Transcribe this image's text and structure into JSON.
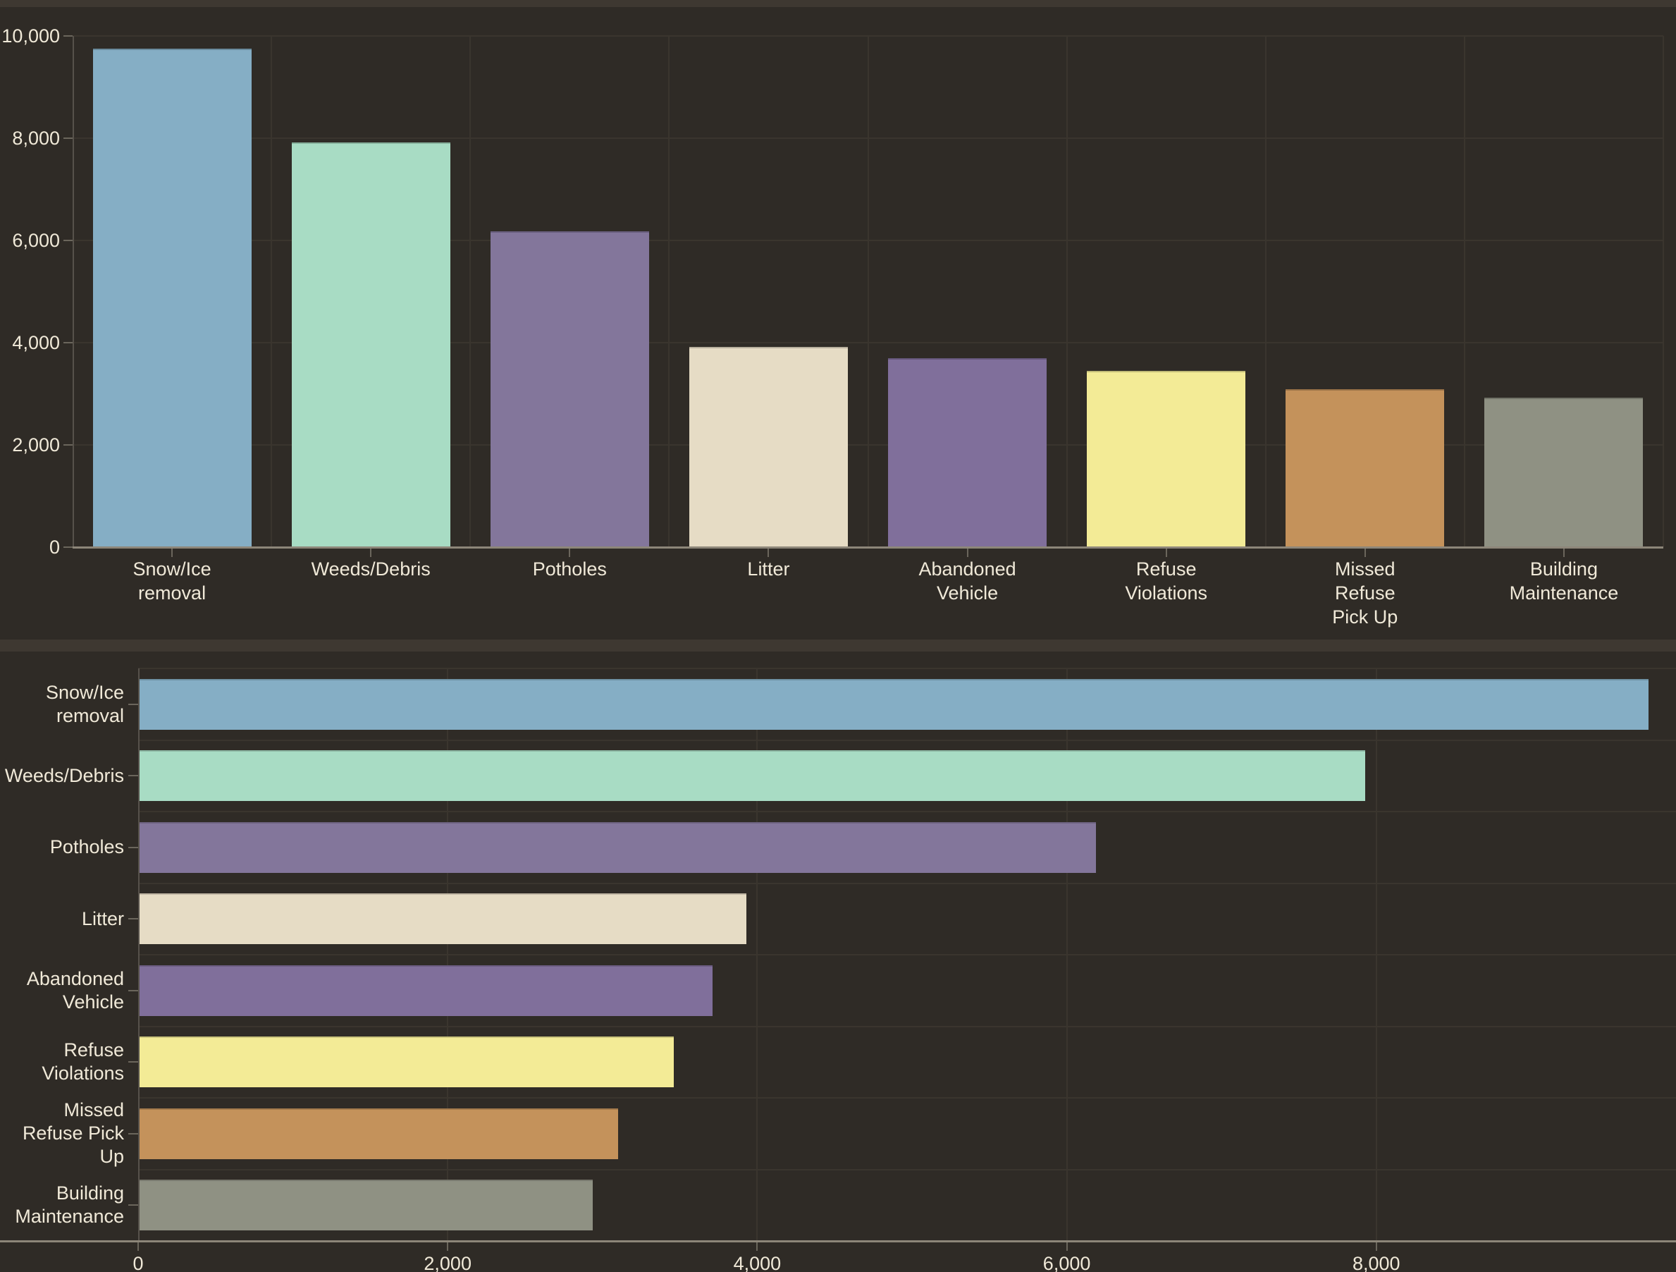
{
  "page": {
    "background_color": "#3E3831",
    "panel_background_color": "#2F2B26",
    "text_color": "#F0E9D8",
    "gridline_color": "#3A352E",
    "axis_line_color": "#8D8679",
    "axis_minor_color": "#57524B"
  },
  "chart_data": [
    {
      "type": "bar",
      "orientation": "vertical",
      "title": "",
      "xlabel": "",
      "ylabel": "",
      "legend": false,
      "grid": true,
      "categories": [
        "Snow/Ice removal",
        "Weeds/Debris",
        "Potholes",
        "Litter",
        "Abandoned Vehicle",
        "Refuse Violations",
        "Missed Refuse Pick Up",
        "Building Maintenance"
      ],
      "category_label_lines": [
        [
          "Snow/Ice",
          "removal"
        ],
        [
          "Weeds/Debris"
        ],
        [
          "Potholes"
        ],
        [
          "Litter"
        ],
        [
          "Abandoned",
          "Vehicle"
        ],
        [
          "Refuse",
          "Violations"
        ],
        [
          "Missed",
          "Refuse",
          "Pick Up"
        ],
        [
          "Building",
          "Maintenance"
        ]
      ],
      "values": [
        9750,
        7920,
        6180,
        3920,
        3700,
        3450,
        3090,
        2930
      ],
      "bar_colors": [
        "#85AEC5",
        "#A8DCC4",
        "#83769B",
        "#E6DCC5",
        "#806F9B",
        "#F3EB96",
        "#C4925B",
        "#8F9183"
      ],
      "ylim": [
        0,
        10000
      ],
      "yticks": [
        0,
        2000,
        4000,
        6000,
        8000,
        10000
      ],
      "ytick_labels": [
        "0",
        "2,000",
        "4,000",
        "6,000",
        "8,000",
        "10,000"
      ]
    },
    {
      "type": "bar",
      "orientation": "horizontal",
      "title": "",
      "xlabel": "",
      "ylabel": "",
      "legend": false,
      "grid": true,
      "categories": [
        "Snow/Ice removal",
        "Weeds/Debris",
        "Potholes",
        "Litter",
        "Abandoned Vehicle",
        "Refuse Violations",
        "Missed Refuse Pick Up",
        "Building Maintenance"
      ],
      "category_label_lines": [
        [
          "Snow/Ice",
          "removal"
        ],
        [
          "Weeds/Debris"
        ],
        [
          "Potholes"
        ],
        [
          "Litter"
        ],
        [
          "Abandoned",
          "Vehicle"
        ],
        [
          "Refuse",
          "Violations"
        ],
        [
          "Missed",
          "Refuse Pick",
          "Up"
        ],
        [
          "Building",
          "Maintenance"
        ]
      ],
      "values": [
        9750,
        7920,
        6180,
        3920,
        3700,
        3450,
        3090,
        2930
      ],
      "bar_colors": [
        "#85AEC5",
        "#A8DCC4",
        "#83769B",
        "#E6DCC5",
        "#806F9B",
        "#F3EB96",
        "#C4925B",
        "#8F9183"
      ],
      "xlim": [
        0,
        9935
      ],
      "xticks": [
        0,
        2000,
        4000,
        6000,
        8000
      ],
      "xtick_labels": [
        "0",
        "2,000",
        "4,000",
        "6,000",
        "8,000"
      ]
    }
  ]
}
